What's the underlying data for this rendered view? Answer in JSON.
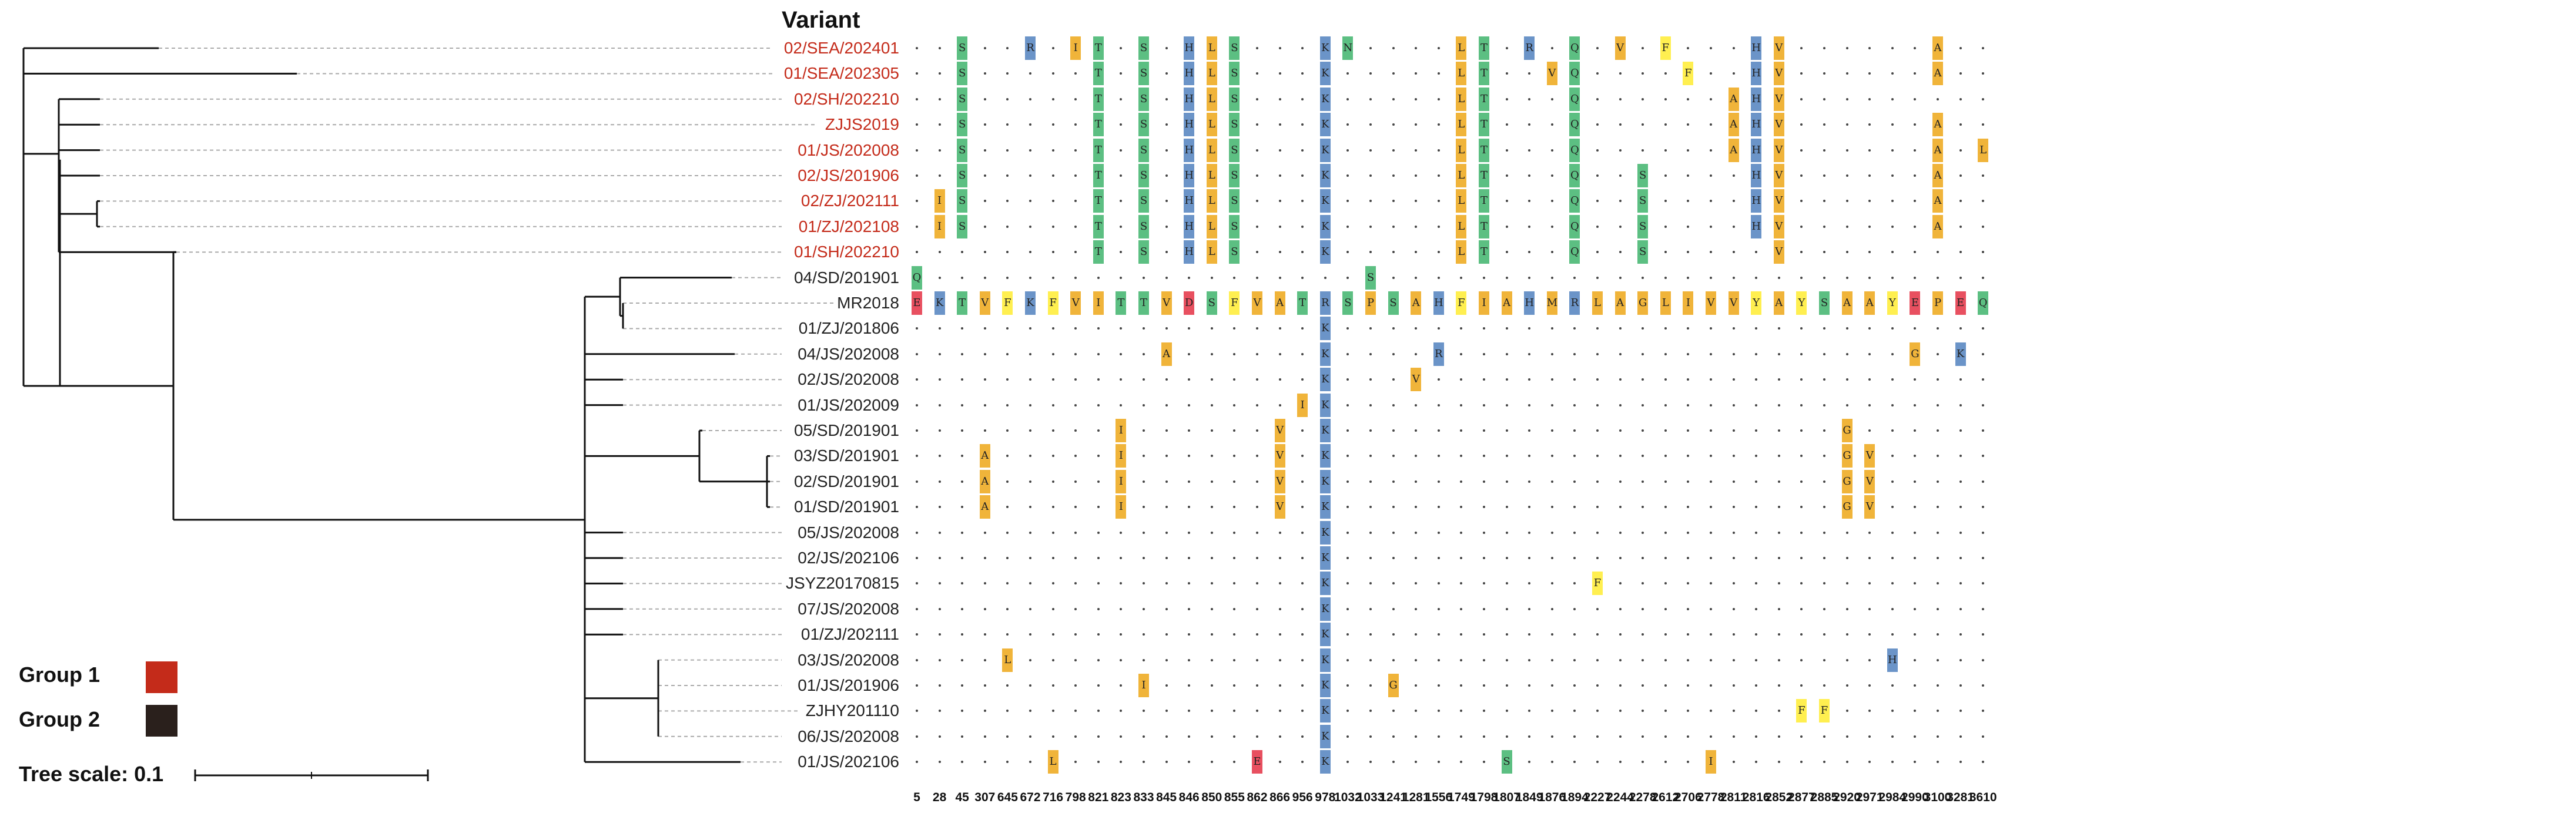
{
  "title": "Variant",
  "legend": {
    "groups": [
      {
        "label": "Group 1",
        "color": "#c42b1a"
      },
      {
        "label": "Group 2",
        "color": "#2a201c"
      }
    ],
    "tree_scale_label": "Tree scale: 0.1"
  },
  "colors": {
    "S": "#5cbf82",
    "T": "#5cbf82",
    "N": "#5cbf82",
    "Q": "#5cbf82",
    "G": "#f0b43a",
    "R": "#6b94c8",
    "K": "#6b94c8",
    "H": "#6b94c8",
    "I": "#f0b43a",
    "L": "#f0b43a",
    "V": "#f0b43a",
    "A": "#f0b43a",
    "M": "#f0b43a",
    "P": "#f0b43a",
    "F": "#ffef50",
    "Y": "#ffef50",
    "E": "#e85060",
    "D": "#e85060"
  },
  "positions": [
    "5",
    "28",
    "45",
    "307",
    "645",
    "672",
    "716",
    "798",
    "821",
    "823",
    "833",
    "845",
    "846",
    "850",
    "855",
    "862",
    "866",
    "956",
    "978",
    "1032",
    "1033",
    "1241",
    "1281",
    "1556",
    "1749",
    "1798",
    "1807",
    "1849",
    "1876",
    "1894",
    "2227",
    "2244",
    "2278",
    "2612",
    "2706",
    "2778",
    "2811",
    "2816",
    "2852",
    "2877",
    "2885",
    "2920",
    "2971",
    "2984",
    "2990",
    "3100",
    "3281",
    "3610"
  ],
  "taxa": [
    {
      "label": "02/SEA/202401",
      "group": 1
    },
    {
      "label": "01/SEA/202305",
      "group": 1
    },
    {
      "label": "02/SH/202210",
      "group": 1
    },
    {
      "label": "ZJJS2019",
      "group": 1
    },
    {
      "label": "01/JS/202008",
      "group": 1
    },
    {
      "label": "02/JS/201906",
      "group": 1
    },
    {
      "label": "02/ZJ/202111",
      "group": 1
    },
    {
      "label": "01/ZJ/202108",
      "group": 1
    },
    {
      "label": "01/SH/202210",
      "group": 1
    },
    {
      "label": "04/SD/201901",
      "group": 2
    },
    {
      "label": "MR2018",
      "group": 2
    },
    {
      "label": "01/ZJ/201806",
      "group": 2
    },
    {
      "label": "04/JS/202008",
      "group": 2
    },
    {
      "label": "02/JS/202008",
      "group": 2
    },
    {
      "label": "01/JS/202009",
      "group": 2
    },
    {
      "label": "05/SD/201901",
      "group": 2
    },
    {
      "label": "03/SD/201901",
      "group": 2
    },
    {
      "label": "02/SD/201901",
      "group": 2
    },
    {
      "label": "01/SD/201901",
      "group": 2
    },
    {
      "label": "05/JS/202008",
      "group": 2
    },
    {
      "label": "02/JS/202106",
      "group": 2
    },
    {
      "label": "JSYZ20170815",
      "group": 2
    },
    {
      "label": "07/JS/202008",
      "group": 2
    },
    {
      "label": "01/ZJ/202111",
      "group": 2
    },
    {
      "label": "03/JS/202008",
      "group": 2
    },
    {
      "label": "01/JS/201906",
      "group": 2
    },
    {
      "label": "ZJHY201110",
      "group": 2
    },
    {
      "label": "06/JS/202008",
      "group": 2
    },
    {
      "label": "01/JS/202106",
      "group": 2
    }
  ],
  "reference": [
    "E",
    "K",
    "T",
    "V",
    "F",
    "K",
    "F",
    "V",
    "I",
    "T",
    "T",
    "V",
    "D",
    "S",
    "F",
    "V",
    "A",
    "T",
    "R",
    "S",
    "P",
    "S",
    "A",
    "H",
    "F",
    "I",
    "A",
    "H",
    "M",
    "R",
    "L",
    "A",
    "G",
    "L",
    "I",
    "V",
    "V",
    "Y",
    "A",
    "Y",
    "S",
    "A",
    "A",
    "Y",
    "E",
    "P",
    "E",
    "Q"
  ],
  "mutations": [
    {
      "row": 0,
      "col": 2,
      "aa": "S"
    },
    {
      "row": 0,
      "col": 5,
      "aa": "R"
    },
    {
      "row": 0,
      "col": 7,
      "aa": "I"
    },
    {
      "row": 0,
      "col": 8,
      "aa": "T"
    },
    {
      "row": 0,
      "col": 10,
      "aa": "S"
    },
    {
      "row": 0,
      "col": 12,
      "aa": "H"
    },
    {
      "row": 0,
      "col": 13,
      "aa": "L"
    },
    {
      "row": 0,
      "col": 14,
      "aa": "S"
    },
    {
      "row": 0,
      "col": 18,
      "aa": "K"
    },
    {
      "row": 0,
      "col": 19,
      "aa": "N"
    },
    {
      "row": 0,
      "col": 24,
      "aa": "L"
    },
    {
      "row": 0,
      "col": 25,
      "aa": "T"
    },
    {
      "row": 0,
      "col": 27,
      "aa": "R"
    },
    {
      "row": 0,
      "col": 29,
      "aa": "Q"
    },
    {
      "row": 0,
      "col": 31,
      "aa": "V"
    },
    {
      "row": 0,
      "col": 33,
      "aa": "F"
    },
    {
      "row": 0,
      "col": 37,
      "aa": "H"
    },
    {
      "row": 0,
      "col": 38,
      "aa": "V"
    },
    {
      "row": 0,
      "col": 45,
      "aa": "A"
    },
    {
      "row": 1,
      "col": 2,
      "aa": "S"
    },
    {
      "row": 1,
      "col": 8,
      "aa": "T"
    },
    {
      "row": 1,
      "col": 10,
      "aa": "S"
    },
    {
      "row": 1,
      "col": 12,
      "aa": "H"
    },
    {
      "row": 1,
      "col": 13,
      "aa": "L"
    },
    {
      "row": 1,
      "col": 14,
      "aa": "S"
    },
    {
      "row": 1,
      "col": 18,
      "aa": "K"
    },
    {
      "row": 1,
      "col": 24,
      "aa": "L"
    },
    {
      "row": 1,
      "col": 25,
      "aa": "T"
    },
    {
      "row": 1,
      "col": 28,
      "aa": "V"
    },
    {
      "row": 1,
      "col": 29,
      "aa": "Q"
    },
    {
      "row": 1,
      "col": 34,
      "aa": "F"
    },
    {
      "row": 1,
      "col": 37,
      "aa": "H"
    },
    {
      "row": 1,
      "col": 38,
      "aa": "V"
    },
    {
      "row": 1,
      "col": 45,
      "aa": "A"
    },
    {
      "row": 2,
      "col": 2,
      "aa": "S"
    },
    {
      "row": 2,
      "col": 8,
      "aa": "T"
    },
    {
      "row": 2,
      "col": 10,
      "aa": "S"
    },
    {
      "row": 2,
      "col": 12,
      "aa": "H"
    },
    {
      "row": 2,
      "col": 13,
      "aa": "L"
    },
    {
      "row": 2,
      "col": 14,
      "aa": "S"
    },
    {
      "row": 2,
      "col": 18,
      "aa": "K"
    },
    {
      "row": 2,
      "col": 24,
      "aa": "L"
    },
    {
      "row": 2,
      "col": 25,
      "aa": "T"
    },
    {
      "row": 2,
      "col": 29,
      "aa": "Q"
    },
    {
      "row": 2,
      "col": 36,
      "aa": "A"
    },
    {
      "row": 2,
      "col": 37,
      "aa": "H"
    },
    {
      "row": 2,
      "col": 38,
      "aa": "V"
    },
    {
      "row": 3,
      "col": 2,
      "aa": "S"
    },
    {
      "row": 3,
      "col": 8,
      "aa": "T"
    },
    {
      "row": 3,
      "col": 10,
      "aa": "S"
    },
    {
      "row": 3,
      "col": 12,
      "aa": "H"
    },
    {
      "row": 3,
      "col": 13,
      "aa": "L"
    },
    {
      "row": 3,
      "col": 14,
      "aa": "S"
    },
    {
      "row": 3,
      "col": 18,
      "aa": "K"
    },
    {
      "row": 3,
      "col": 24,
      "aa": "L"
    },
    {
      "row": 3,
      "col": 25,
      "aa": "T"
    },
    {
      "row": 3,
      "col": 29,
      "aa": "Q"
    },
    {
      "row": 3,
      "col": 36,
      "aa": "A"
    },
    {
      "row": 3,
      "col": 37,
      "aa": "H"
    },
    {
      "row": 3,
      "col": 38,
      "aa": "V"
    },
    {
      "row": 3,
      "col": 45,
      "aa": "A"
    },
    {
      "row": 4,
      "col": 2,
      "aa": "S"
    },
    {
      "row": 4,
      "col": 8,
      "aa": "T"
    },
    {
      "row": 4,
      "col": 10,
      "aa": "S"
    },
    {
      "row": 4,
      "col": 12,
      "aa": "H"
    },
    {
      "row": 4,
      "col": 13,
      "aa": "L"
    },
    {
      "row": 4,
      "col": 14,
      "aa": "S"
    },
    {
      "row": 4,
      "col": 18,
      "aa": "K"
    },
    {
      "row": 4,
      "col": 24,
      "aa": "L"
    },
    {
      "row": 4,
      "col": 25,
      "aa": "T"
    },
    {
      "row": 4,
      "col": 29,
      "aa": "Q"
    },
    {
      "row": 4,
      "col": 36,
      "aa": "A"
    },
    {
      "row": 4,
      "col": 37,
      "aa": "H"
    },
    {
      "row": 4,
      "col": 38,
      "aa": "V"
    },
    {
      "row": 4,
      "col": 45,
      "aa": "A"
    },
    {
      "row": 4,
      "col": 47,
      "aa": "L"
    },
    {
      "row": 5,
      "col": 2,
      "aa": "S"
    },
    {
      "row": 5,
      "col": 8,
      "aa": "T"
    },
    {
      "row": 5,
      "col": 10,
      "aa": "S"
    },
    {
      "row": 5,
      "col": 12,
      "aa": "H"
    },
    {
      "row": 5,
      "col": 13,
      "aa": "L"
    },
    {
      "row": 5,
      "col": 14,
      "aa": "S"
    },
    {
      "row": 5,
      "col": 18,
      "aa": "K"
    },
    {
      "row": 5,
      "col": 24,
      "aa": "L"
    },
    {
      "row": 5,
      "col": 25,
      "aa": "T"
    },
    {
      "row": 5,
      "col": 29,
      "aa": "Q"
    },
    {
      "row": 5,
      "col": 32,
      "aa": "S"
    },
    {
      "row": 5,
      "col": 37,
      "aa": "H"
    },
    {
      "row": 5,
      "col": 38,
      "aa": "V"
    },
    {
      "row": 5,
      "col": 45,
      "aa": "A"
    },
    {
      "row": 6,
      "col": 1,
      "aa": "I"
    },
    {
      "row": 6,
      "col": 2,
      "aa": "S"
    },
    {
      "row": 6,
      "col": 8,
      "aa": "T"
    },
    {
      "row": 6,
      "col": 10,
      "aa": "S"
    },
    {
      "row": 6,
      "col": 12,
      "aa": "H"
    },
    {
      "row": 6,
      "col": 13,
      "aa": "L"
    },
    {
      "row": 6,
      "col": 14,
      "aa": "S"
    },
    {
      "row": 6,
      "col": 18,
      "aa": "K"
    },
    {
      "row": 6,
      "col": 24,
      "aa": "L"
    },
    {
      "row": 6,
      "col": 25,
      "aa": "T"
    },
    {
      "row": 6,
      "col": 29,
      "aa": "Q"
    },
    {
      "row": 6,
      "col": 32,
      "aa": "S"
    },
    {
      "row": 6,
      "col": 37,
      "aa": "H"
    },
    {
      "row": 6,
      "col": 38,
      "aa": "V"
    },
    {
      "row": 6,
      "col": 45,
      "aa": "A"
    },
    {
      "row": 7,
      "col": 1,
      "aa": "I"
    },
    {
      "row": 7,
      "col": 2,
      "aa": "S"
    },
    {
      "row": 7,
      "col": 8,
      "aa": "T"
    },
    {
      "row": 7,
      "col": 10,
      "aa": "S"
    },
    {
      "row": 7,
      "col": 12,
      "aa": "H"
    },
    {
      "row": 7,
      "col": 13,
      "aa": "L"
    },
    {
      "row": 7,
      "col": 14,
      "aa": "S"
    },
    {
      "row": 7,
      "col": 18,
      "aa": "K"
    },
    {
      "row": 7,
      "col": 24,
      "aa": "L"
    },
    {
      "row": 7,
      "col": 25,
      "aa": "T"
    },
    {
      "row": 7,
      "col": 29,
      "aa": "Q"
    },
    {
      "row": 7,
      "col": 32,
      "aa": "S"
    },
    {
      "row": 7,
      "col": 37,
      "aa": "H"
    },
    {
      "row": 7,
      "col": 38,
      "aa": "V"
    },
    {
      "row": 7,
      "col": 45,
      "aa": "A"
    },
    {
      "row": 8,
      "col": 8,
      "aa": "T"
    },
    {
      "row": 8,
      "col": 10,
      "aa": "S"
    },
    {
      "row": 8,
      "col": 12,
      "aa": "H"
    },
    {
      "row": 8,
      "col": 13,
      "aa": "L"
    },
    {
      "row": 8,
      "col": 14,
      "aa": "S"
    },
    {
      "row": 8,
      "col": 18,
      "aa": "K"
    },
    {
      "row": 8,
      "col": 24,
      "aa": "L"
    },
    {
      "row": 8,
      "col": 25,
      "aa": "T"
    },
    {
      "row": 8,
      "col": 29,
      "aa": "Q"
    },
    {
      "row": 8,
      "col": 32,
      "aa": "S"
    },
    {
      "row": 8,
      "col": 38,
      "aa": "V"
    },
    {
      "row": 9,
      "col": 0,
      "aa": "Q"
    },
    {
      "row": 9,
      "col": 20,
      "aa": "S"
    },
    {
      "row": 11,
      "col": 18,
      "aa": "K"
    },
    {
      "row": 12,
      "col": 11,
      "aa": "A"
    },
    {
      "row": 12,
      "col": 18,
      "aa": "K"
    },
    {
      "row": 12,
      "col": 23,
      "aa": "R"
    },
    {
      "row": 12,
      "col": 44,
      "aa": "G"
    },
    {
      "row": 12,
      "col": 46,
      "aa": "K"
    },
    {
      "row": 13,
      "col": 18,
      "aa": "K"
    },
    {
      "row": 13,
      "col": 22,
      "aa": "V"
    },
    {
      "row": 14,
      "col": 17,
      "aa": "I"
    },
    {
      "row": 14,
      "col": 18,
      "aa": "K"
    },
    {
      "row": 15,
      "col": 9,
      "aa": "I"
    },
    {
      "row": 15,
      "col": 16,
      "aa": "V"
    },
    {
      "row": 15,
      "col": 18,
      "aa": "K"
    },
    {
      "row": 15,
      "col": 41,
      "aa": "G"
    },
    {
      "row": 16,
      "col": 3,
      "aa": "A"
    },
    {
      "row": 16,
      "col": 9,
      "aa": "I"
    },
    {
      "row": 16,
      "col": 16,
      "aa": "V"
    },
    {
      "row": 16,
      "col": 18,
      "aa": "K"
    },
    {
      "row": 16,
      "col": 41,
      "aa": "G"
    },
    {
      "row": 16,
      "col": 42,
      "aa": "V"
    },
    {
      "row": 17,
      "col": 3,
      "aa": "A"
    },
    {
      "row": 17,
      "col": 9,
      "aa": "I"
    },
    {
      "row": 17,
      "col": 16,
      "aa": "V"
    },
    {
      "row": 17,
      "col": 18,
      "aa": "K"
    },
    {
      "row": 17,
      "col": 41,
      "aa": "G"
    },
    {
      "row": 17,
      "col": 42,
      "aa": "V"
    },
    {
      "row": 18,
      "col": 3,
      "aa": "A"
    },
    {
      "row": 18,
      "col": 9,
      "aa": "I"
    },
    {
      "row": 18,
      "col": 16,
      "aa": "V"
    },
    {
      "row": 18,
      "col": 18,
      "aa": "K"
    },
    {
      "row": 18,
      "col": 41,
      "aa": "G"
    },
    {
      "row": 18,
      "col": 42,
      "aa": "V"
    },
    {
      "row": 19,
      "col": 18,
      "aa": "K"
    },
    {
      "row": 20,
      "col": 18,
      "aa": "K"
    },
    {
      "row": 21,
      "col": 18,
      "aa": "K"
    },
    {
      "row": 21,
      "col": 30,
      "aa": "F"
    },
    {
      "row": 22,
      "col": 18,
      "aa": "K"
    },
    {
      "row": 23,
      "col": 18,
      "aa": "K"
    },
    {
      "row": 24,
      "col": 4,
      "aa": "L"
    },
    {
      "row": 24,
      "col": 18,
      "aa": "K"
    },
    {
      "row": 24,
      "col": 43,
      "aa": "H"
    },
    {
      "row": 25,
      "col": 10,
      "aa": "I"
    },
    {
      "row": 25,
      "col": 18,
      "aa": "K"
    },
    {
      "row": 25,
      "col": 21,
      "aa": "G"
    },
    {
      "row": 26,
      "col": 18,
      "aa": "K"
    },
    {
      "row": 26,
      "col": 39,
      "aa": "F"
    },
    {
      "row": 26,
      "col": 40,
      "aa": "F"
    },
    {
      "row": 27,
      "col": 18,
      "aa": "K"
    },
    {
      "row": 28,
      "col": 6,
      "aa": "L"
    },
    {
      "row": 28,
      "col": 15,
      "aa": "E"
    },
    {
      "row": 28,
      "col": 18,
      "aa": "K"
    },
    {
      "row": 28,
      "col": 26,
      "aa": "S"
    },
    {
      "row": 28,
      "col": 35,
      "aa": "I"
    }
  ]
}
